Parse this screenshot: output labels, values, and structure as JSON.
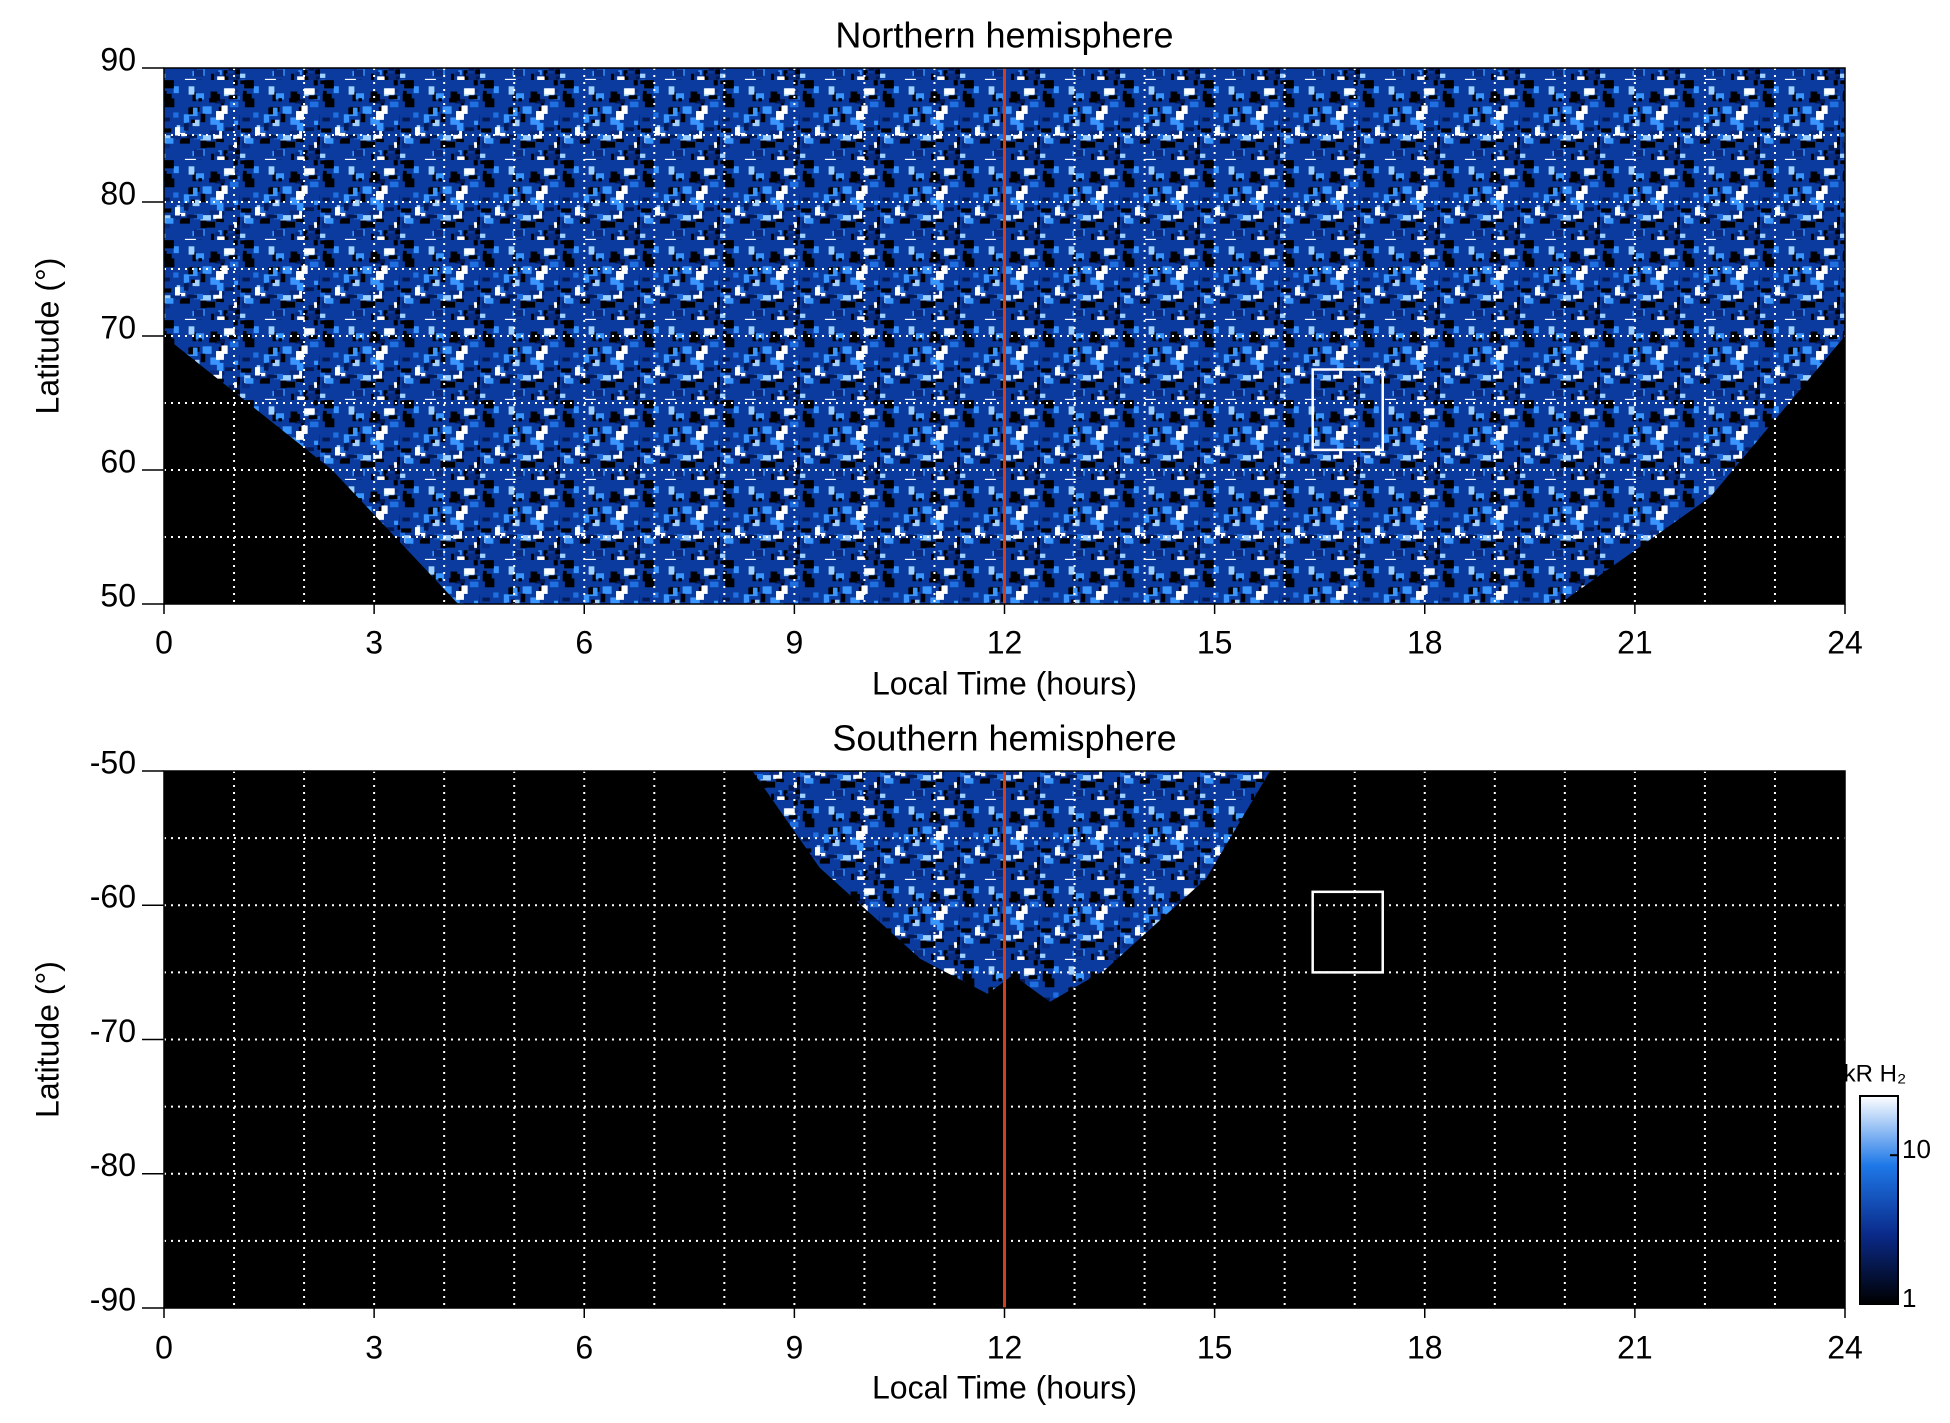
{
  "chart_data": [
    {
      "type": "heatmap",
      "title": "Northern hemisphere",
      "xlabel": "Local Time (hours)",
      "ylabel": "Latitude (°)",
      "xlim": [
        0,
        24
      ],
      "xticks": [
        0,
        3,
        6,
        9,
        12,
        15,
        18,
        21,
        24
      ],
      "ylim": [
        50,
        90
      ],
      "yticks": [
        50,
        60,
        70,
        80,
        90
      ],
      "xgrid": [
        1,
        2,
        3,
        4,
        5,
        6,
        7,
        8,
        9,
        10,
        11,
        12,
        13,
        14,
        15,
        16,
        17,
        18,
        19,
        20,
        21,
        22,
        23
      ],
      "ygrid": [
        55,
        60,
        65,
        70,
        75,
        80,
        85
      ],
      "grid_color": "#ffffff",
      "reference_line": {
        "x": 12,
        "color": "#d0401c"
      },
      "box": {
        "x": [
          16.4,
          17.4
        ],
        "y": [
          61.5,
          67.5
        ],
        "color": "#ffffff"
      }
    },
    {
      "type": "heatmap",
      "title": "Southern hemisphere",
      "xlabel": "Local Time (hours)",
      "ylabel": "Latitude (°)",
      "xlim": [
        0,
        24
      ],
      "xticks": [
        0,
        3,
        6,
        9,
        12,
        15,
        18,
        21,
        24
      ],
      "ylim": [
        -90,
        -50
      ],
      "yticks": [
        -90,
        -80,
        -70,
        -60,
        -50
      ],
      "xgrid": [
        1,
        2,
        3,
        4,
        5,
        6,
        7,
        8,
        9,
        10,
        11,
        12,
        13,
        14,
        15,
        16,
        17,
        18,
        19,
        20,
        21,
        22,
        23
      ],
      "ygrid": [
        -85,
        -80,
        -75,
        -70,
        -65,
        -60,
        -55
      ],
      "grid_color": "#ffffff",
      "reference_line": {
        "x": 12,
        "color": "#d0401c"
      },
      "box": {
        "x": [
          16.4,
          17.4
        ],
        "y": [
          -65,
          -59
        ],
        "color": "#ffffff"
      },
      "colorbar": {
        "label": "kR H₂",
        "scale": "log",
        "lim": [
          1,
          25
        ],
        "ticks": [
          1,
          10
        ],
        "colors": [
          "#000000",
          "#0a2a8a",
          "#1e78e8",
          "#ffffff"
        ]
      }
    }
  ]
}
